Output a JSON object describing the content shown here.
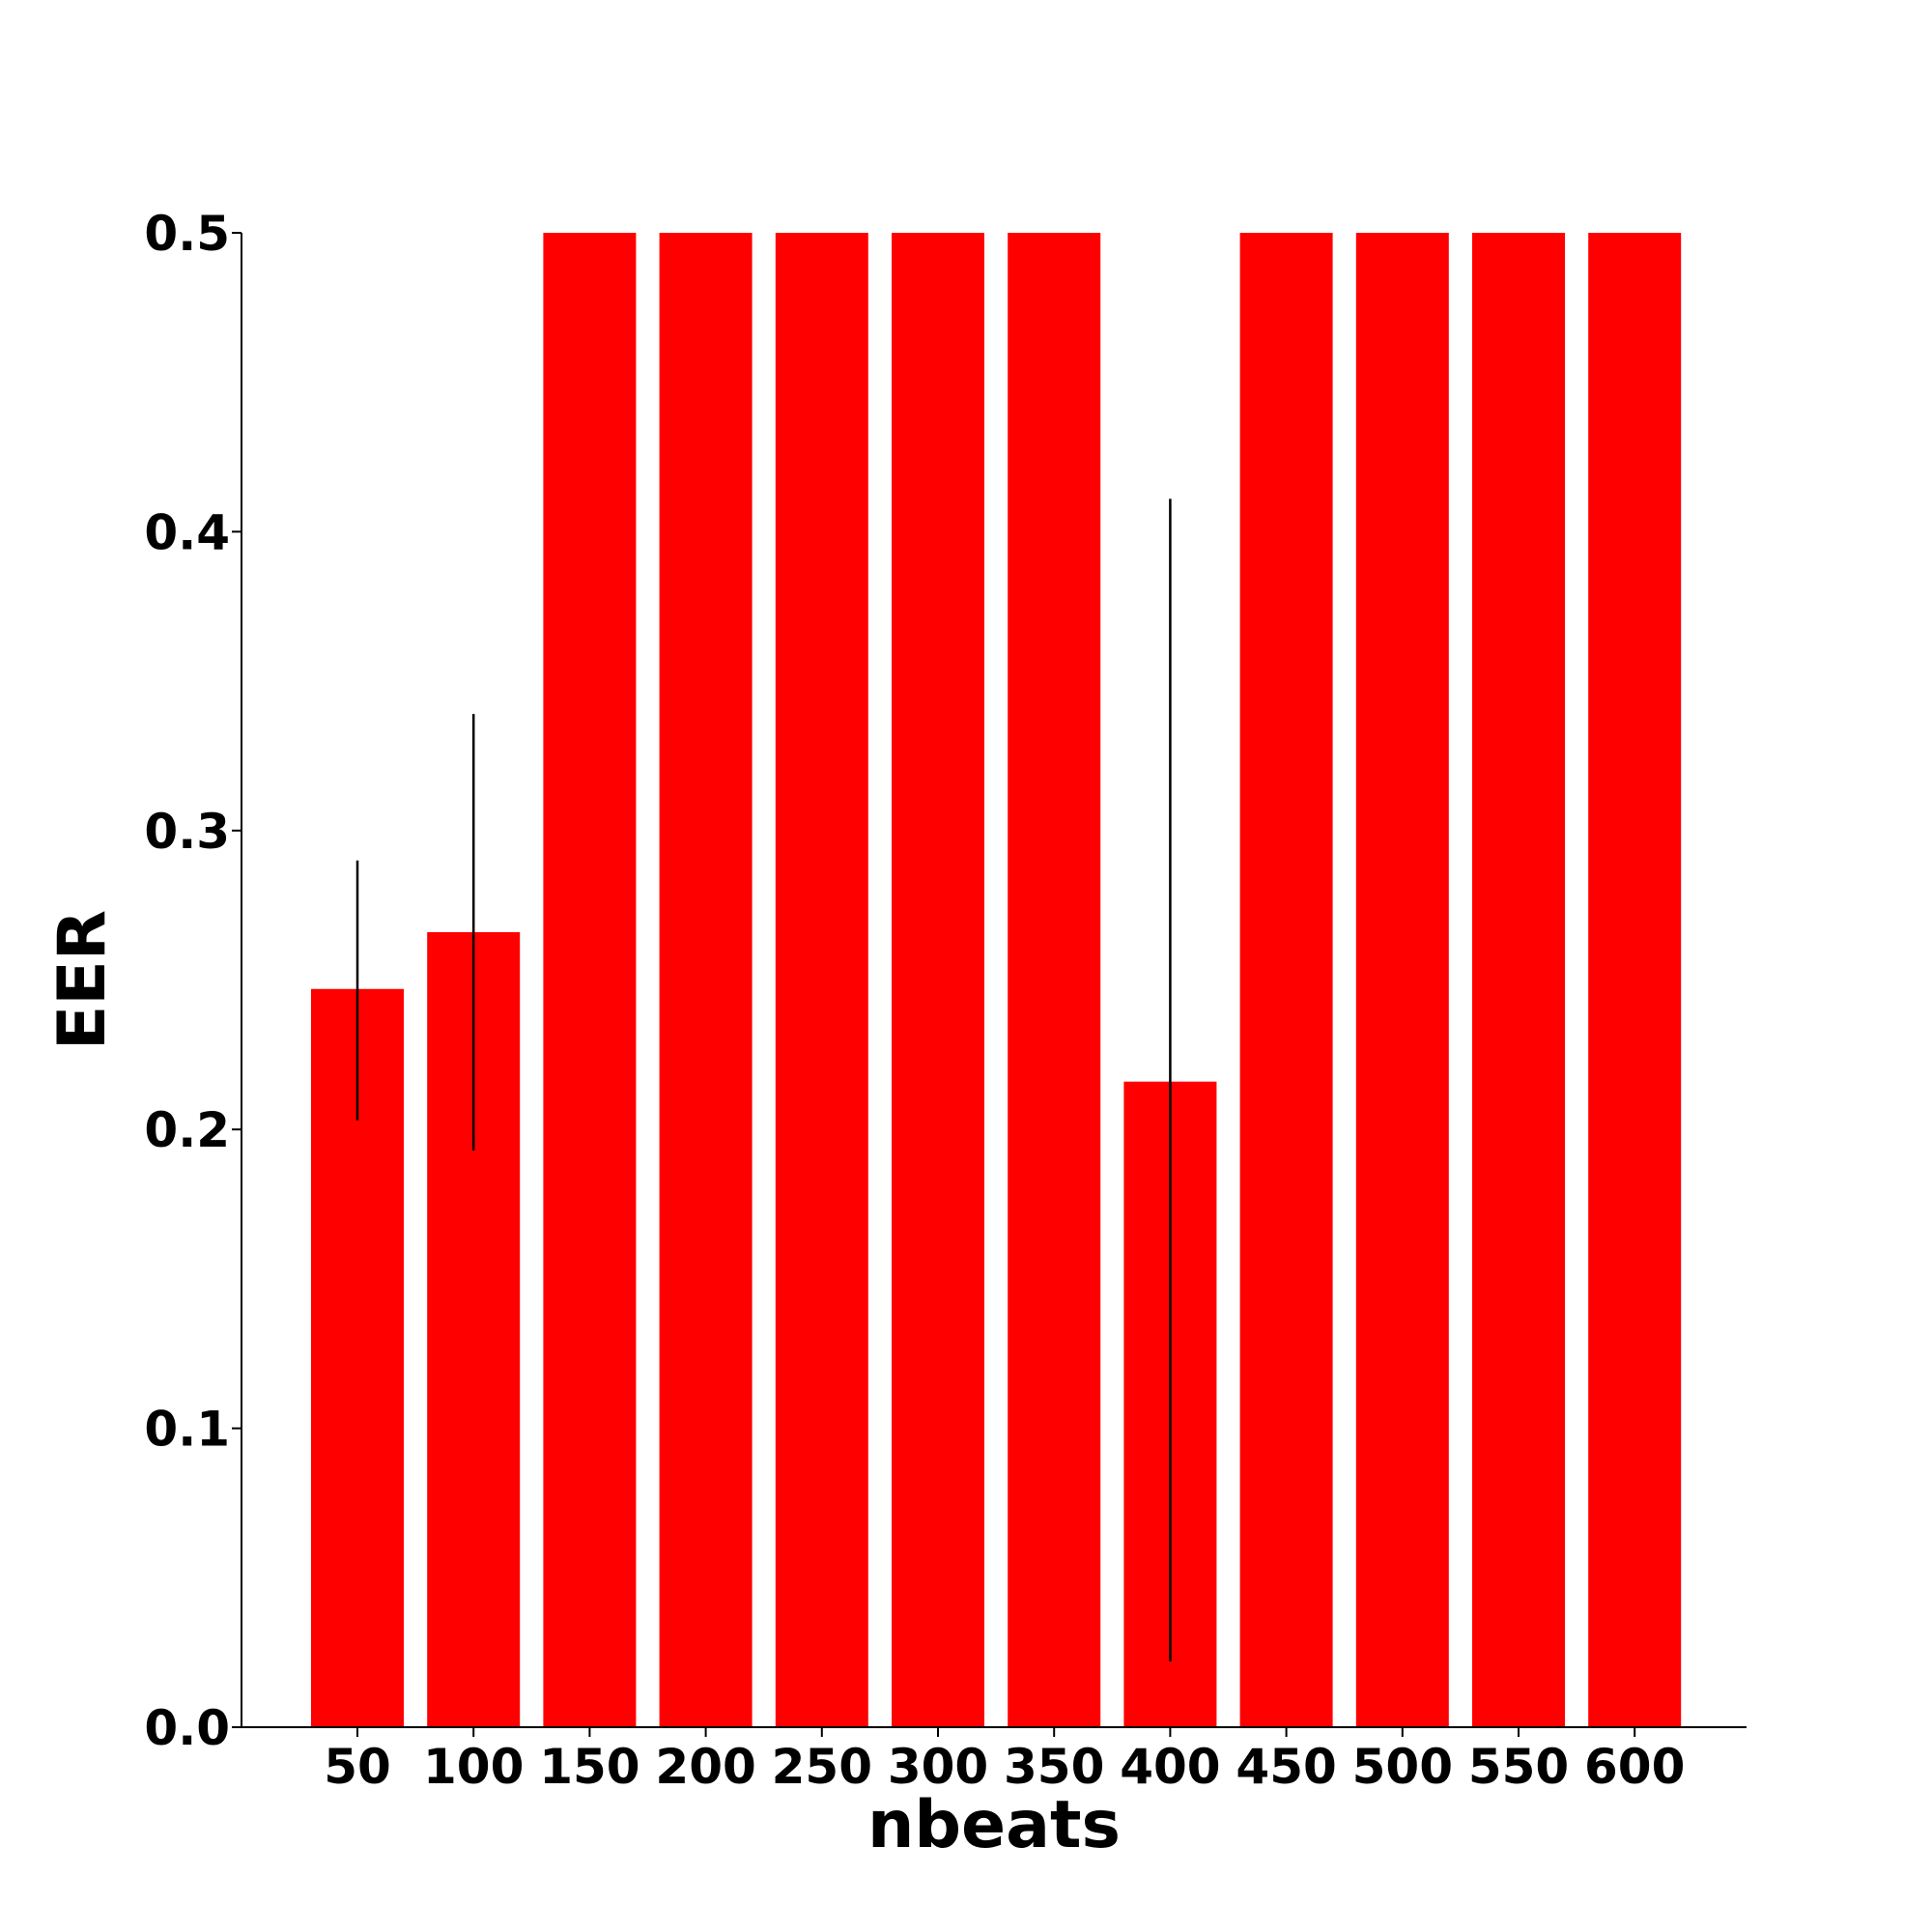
{
  "chart_data": {
    "type": "bar",
    "title": "",
    "xlabel": "nbeats",
    "ylabel": "EER",
    "categories": [
      "50",
      "100",
      "150",
      "200",
      "250",
      "300",
      "350",
      "400",
      "450",
      "500",
      "550",
      "600"
    ],
    "values": [
      0.247,
      0.266,
      0.5,
      0.5,
      0.5,
      0.5,
      0.5,
      0.216,
      0.5,
      0.5,
      0.5,
      0.5
    ],
    "error_low": [
      0.203,
      0.193,
      null,
      null,
      null,
      null,
      null,
      0.022,
      null,
      null,
      null,
      null
    ],
    "error_high": [
      0.29,
      0.339,
      null,
      null,
      null,
      null,
      null,
      0.411,
      null,
      null,
      null,
      null
    ],
    "ylim": [
      0.0,
      0.5
    ],
    "yticks": [
      "0.0",
      "0.1",
      "0.2",
      "0.3",
      "0.4",
      "0.5"
    ],
    "grid": false,
    "legend": "none",
    "bar_color": "#ff0000",
    "error_color": "#000000",
    "axis_color": "#000000"
  }
}
